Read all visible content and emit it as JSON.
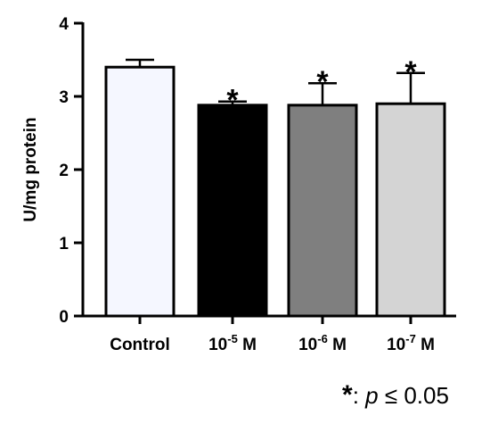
{
  "chart_data": {
    "type": "bar",
    "ylabel": "U/mg protein",
    "ylim": [
      0,
      4
    ],
    "yticks": [
      "0",
      "1",
      "2",
      "3",
      "4"
    ],
    "categories": [
      {
        "base": "Control",
        "exp": "",
        "unit": ""
      },
      {
        "base": "10",
        "exp": "-5",
        "unit": " M"
      },
      {
        "base": "10",
        "exp": "-6",
        "unit": " M"
      },
      {
        "base": "10",
        "exp": "-7",
        "unit": " M"
      }
    ],
    "values": [
      3.4,
      2.88,
      2.88,
      2.9
    ],
    "errors": [
      0.1,
      0.05,
      0.3,
      0.42
    ],
    "significant": [
      false,
      true,
      true,
      true
    ],
    "significance_marker": "*",
    "colors": [
      "#f5f7ff",
      "#000000",
      "#7f7f7f",
      "#d4d4d4"
    ],
    "grid": false,
    "legend": {
      "marker": "*",
      "separator": ": ",
      "p_symbol": "p",
      "condition": " ≤ 0.05"
    }
  }
}
